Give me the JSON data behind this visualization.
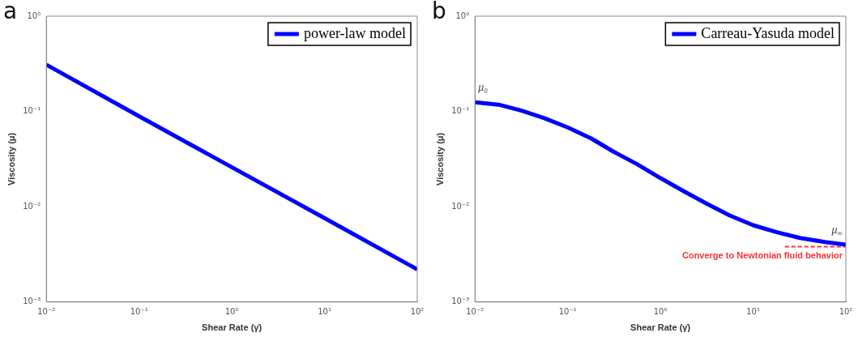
{
  "chart_data": [
    {
      "type": "line",
      "title": "a",
      "xlabel": "Shear Rate (γ̇)",
      "ylabel": "Viscosity (μ)",
      "log": "xy",
      "legend": "top right",
      "grid": false,
      "xlim": [
        0.01,
        100
      ],
      "ylim": [
        0.001,
        1
      ],
      "xticks": [
        {
          "value": 0.01,
          "label": "10⁻²"
        },
        {
          "value": 0.1,
          "label": "10⁻¹"
        },
        {
          "value": 1,
          "label": "10⁰"
        },
        {
          "value": 10,
          "label": "10¹"
        },
        {
          "value": 100,
          "label": "10²"
        }
      ],
      "yticks": [
        {
          "value": 0.001,
          "label": "10⁻³"
        },
        {
          "value": 0.01,
          "label": "10⁻²"
        },
        {
          "value": 0.1,
          "label": "10⁻¹"
        },
        {
          "value": 1,
          "label": "10⁰"
        }
      ],
      "series": [
        {
          "name": "power-law model",
          "color": "#0000ff",
          "x": [
            0.01,
            0.1,
            1,
            10,
            100
          ],
          "values": [
            0.31,
            0.089,
            0.026,
            0.0076,
            0.0022
          ]
        }
      ]
    },
    {
      "type": "line",
      "title": "b",
      "xlabel": "Shear Rate (γ̇)",
      "ylabel": "Viscosity (μ)",
      "log": "xy",
      "legend": "top right",
      "grid": false,
      "xlim": [
        0.01,
        100
      ],
      "ylim": [
        0.001,
        1
      ],
      "xticks": [
        {
          "value": 0.01,
          "label": "10⁻²"
        },
        {
          "value": 0.1,
          "label": "10⁻¹"
        },
        {
          "value": 1,
          "label": "10⁰"
        },
        {
          "value": 10,
          "label": "10¹"
        },
        {
          "value": 100,
          "label": "10²"
        }
      ],
      "yticks": [
        {
          "value": 0.001,
          "label": "10⁻³"
        },
        {
          "value": 0.01,
          "label": "10⁻²"
        },
        {
          "value": 0.1,
          "label": "10⁻¹"
        },
        {
          "value": 1,
          "label": "10⁰"
        }
      ],
      "series": [
        {
          "name": "Carreau-Yasuda model",
          "color": "#0000ff",
          "x": [
            0.01,
            0.018,
            0.032,
            0.056,
            0.1,
            0.18,
            0.31,
            0.56,
            1,
            1.8,
            3.2,
            5.6,
            10,
            18,
            32,
            56,
            100
          ],
          "values": [
            0.125,
            0.118,
            0.102,
            0.085,
            0.068,
            0.052,
            0.038,
            0.028,
            0.02,
            0.0145,
            0.0107,
            0.0081,
            0.0064,
            0.0054,
            0.0047,
            0.0043,
            0.004
          ]
        },
        {
          "name": "Converge to Newtonian fluid behavior",
          "color": "#ff3030",
          "line_style": "dashed",
          "x": [
            22,
            100
          ],
          "values": [
            0.0038,
            0.0038
          ]
        }
      ],
      "annotations": [
        {
          "text": "μ₀",
          "x": 0.01,
          "y": 0.125
        },
        {
          "text": "μ$_{∞}$",
          "x": 100,
          "y": 0.004
        }
      ]
    }
  ]
}
